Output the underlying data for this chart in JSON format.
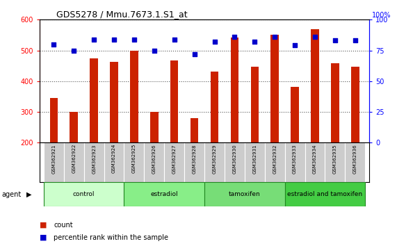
{
  "title": "GDS5278 / Mmu.7673.1.S1_at",
  "samples": [
    "GSM362921",
    "GSM362922",
    "GSM362923",
    "GSM362924",
    "GSM362925",
    "GSM362926",
    "GSM362927",
    "GSM362928",
    "GSM362929",
    "GSM362930",
    "GSM362931",
    "GSM362932",
    "GSM362933",
    "GSM362934",
    "GSM362935",
    "GSM362936"
  ],
  "counts": [
    345,
    300,
    475,
    463,
    500,
    300,
    468,
    280,
    432,
    543,
    447,
    552,
    382,
    568,
    458,
    447
  ],
  "percentiles": [
    80,
    75,
    84,
    84,
    84,
    75,
    84,
    72,
    82,
    86,
    82,
    86,
    79,
    86,
    83,
    83
  ],
  "ylim_left": [
    200,
    600
  ],
  "ylim_right": [
    0,
    100
  ],
  "yticks_left": [
    200,
    300,
    400,
    500,
    600
  ],
  "yticks_right": [
    0,
    25,
    50,
    75,
    100
  ],
  "bar_color": "#cc2200",
  "dot_color": "#0000cc",
  "groups": [
    {
      "label": "control",
      "start": 0,
      "end": 4,
      "color": "#ccffcc"
    },
    {
      "label": "estradiol",
      "start": 4,
      "end": 8,
      "color": "#88ee88"
    },
    {
      "label": "tamoxifen",
      "start": 8,
      "end": 12,
      "color": "#77dd77"
    },
    {
      "label": "estradiol and tamoxifen",
      "start": 12,
      "end": 16,
      "color": "#44cc44"
    }
  ],
  "agent_label": "agent",
  "legend_count_label": "count",
  "legend_percentile_label": "percentile rank within the sample",
  "grid_color": "#555555",
  "tick_area_color": "#cccccc",
  "bg_color": "#ffffff",
  "bar_bottom": 200,
  "bar_width": 0.4,
  "right_axis_label": "100%"
}
